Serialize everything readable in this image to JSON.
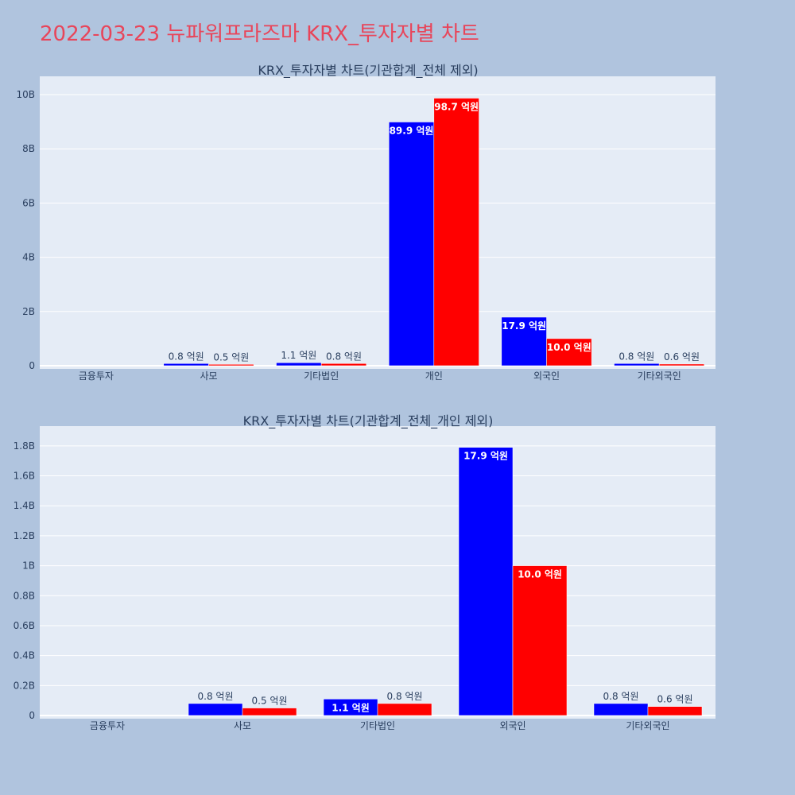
{
  "page_title": "2022-03-23 뉴파워프라즈마 KRX_투자자별 차트",
  "colors": {
    "buy": "#0000ff",
    "sell": "#ff0000",
    "plot_bg": "#e5ecf6",
    "paper_bg": "#b0c4de",
    "title": "#e8455a"
  },
  "chart_data": [
    {
      "type": "bar",
      "title": "KRX_투자자별 차트(기관합계_전체 제외)",
      "categories": [
        "금융투자",
        "사모",
        "기타법인",
        "개인",
        "외국인",
        "기타외국인"
      ],
      "series": [
        {
          "color": "#0000ff",
          "values": [
            0,
            80000000,
            110000000,
            8990000000,
            1790000000,
            80000000
          ],
          "labels": [
            "",
            "0.8 억원",
            "1.1 억원",
            "89.9 억원",
            "17.9 억원",
            "0.8 억원"
          ]
        },
        {
          "color": "#ff0000",
          "values": [
            0,
            50000000,
            80000000,
            9870000000,
            1000000000,
            60000000
          ],
          "labels": [
            "",
            "0.5 억원",
            "0.8 억원",
            "98.7 억원",
            "10.0 억원",
            "0.6 억원"
          ]
        }
      ],
      "ylim": [
        0,
        10500000000
      ],
      "yticks": [
        0,
        2000000000,
        4000000000,
        6000000000,
        8000000000,
        10000000000
      ],
      "ytick_labels": [
        "0",
        "2B",
        "4B",
        "6B",
        "8B",
        "10B"
      ],
      "grid": true
    },
    {
      "type": "bar",
      "title": "KRX_투자자별 차트(기관합계_전체_개인 제외)",
      "categories": [
        "금융투자",
        "사모",
        "기타법인",
        "외국인",
        "기타외국인"
      ],
      "series": [
        {
          "color": "#0000ff",
          "values": [
            0,
            80000000,
            110000000,
            1790000000,
            80000000
          ],
          "labels": [
            "",
            "0.8 억원",
            "1.1 억원",
            "17.9 억원",
            "0.8 억원"
          ]
        },
        {
          "color": "#ff0000",
          "values": [
            0,
            50000000,
            80000000,
            1000000000,
            60000000
          ],
          "labels": [
            "",
            "0.5 억원",
            "0.8 억원",
            "10.0 억원",
            "0.6 억원"
          ]
        }
      ],
      "ylim": [
        0,
        1900000000
      ],
      "yticks": [
        0,
        200000000,
        400000000,
        600000000,
        800000000,
        1000000000,
        1200000000,
        1400000000,
        1600000000,
        1800000000
      ],
      "ytick_labels": [
        "0",
        "0.2B",
        "0.4B",
        "0.6B",
        "0.8B",
        "1B",
        "1.2B",
        "1.4B",
        "1.6B",
        "1.8B"
      ],
      "grid": true
    }
  ]
}
